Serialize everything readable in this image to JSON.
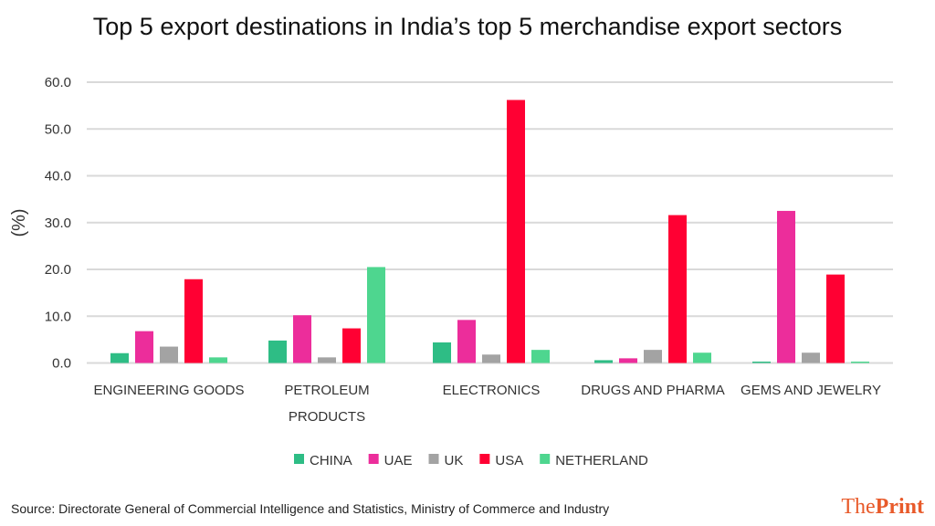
{
  "title": "Top 5 export destinations in India’s top 5 merchandise export sectors",
  "source": "Source: Directorate General of Commercial Intelligence and Statistics, Ministry of Commerce and Industry",
  "logo": {
    "the": "The",
    "print": "Print"
  },
  "chart_data": {
    "type": "bar",
    "ylabel": "(%)",
    "ylim": [
      0,
      60
    ],
    "yticks": [
      "0.0",
      "10.0",
      "20.0",
      "30.0",
      "40.0",
      "50.0",
      "60.0"
    ],
    "grid": true,
    "legend_position": "bottom",
    "categories": [
      [
        "ENGINEERING GOODS"
      ],
      [
        "PETROLEUM",
        "PRODUCTS"
      ],
      [
        "ELECTRONICS"
      ],
      [
        "DRUGS AND PHARMA"
      ],
      [
        "GEMS AND JEWELRY"
      ]
    ],
    "series": [
      {
        "name": "CHINA",
        "color": "#2ebd85",
        "values": [
          2.1,
          4.8,
          4.4,
          0.6,
          0.3
        ]
      },
      {
        "name": "UAE",
        "color": "#ec2d9b",
        "values": [
          6.8,
          10.2,
          9.2,
          1.0,
          32.5
        ]
      },
      {
        "name": "UK",
        "color": "#a3a3a3",
        "values": [
          3.5,
          1.2,
          1.8,
          2.8,
          2.2
        ]
      },
      {
        "name": "USA",
        "color": "#ff0033",
        "values": [
          17.9,
          7.4,
          56.2,
          31.6,
          18.9
        ]
      },
      {
        "name": "NETHERLAND",
        "color": "#4ed68f",
        "values": [
          1.2,
          20.5,
          2.8,
          2.2,
          0.3
        ]
      }
    ]
  }
}
